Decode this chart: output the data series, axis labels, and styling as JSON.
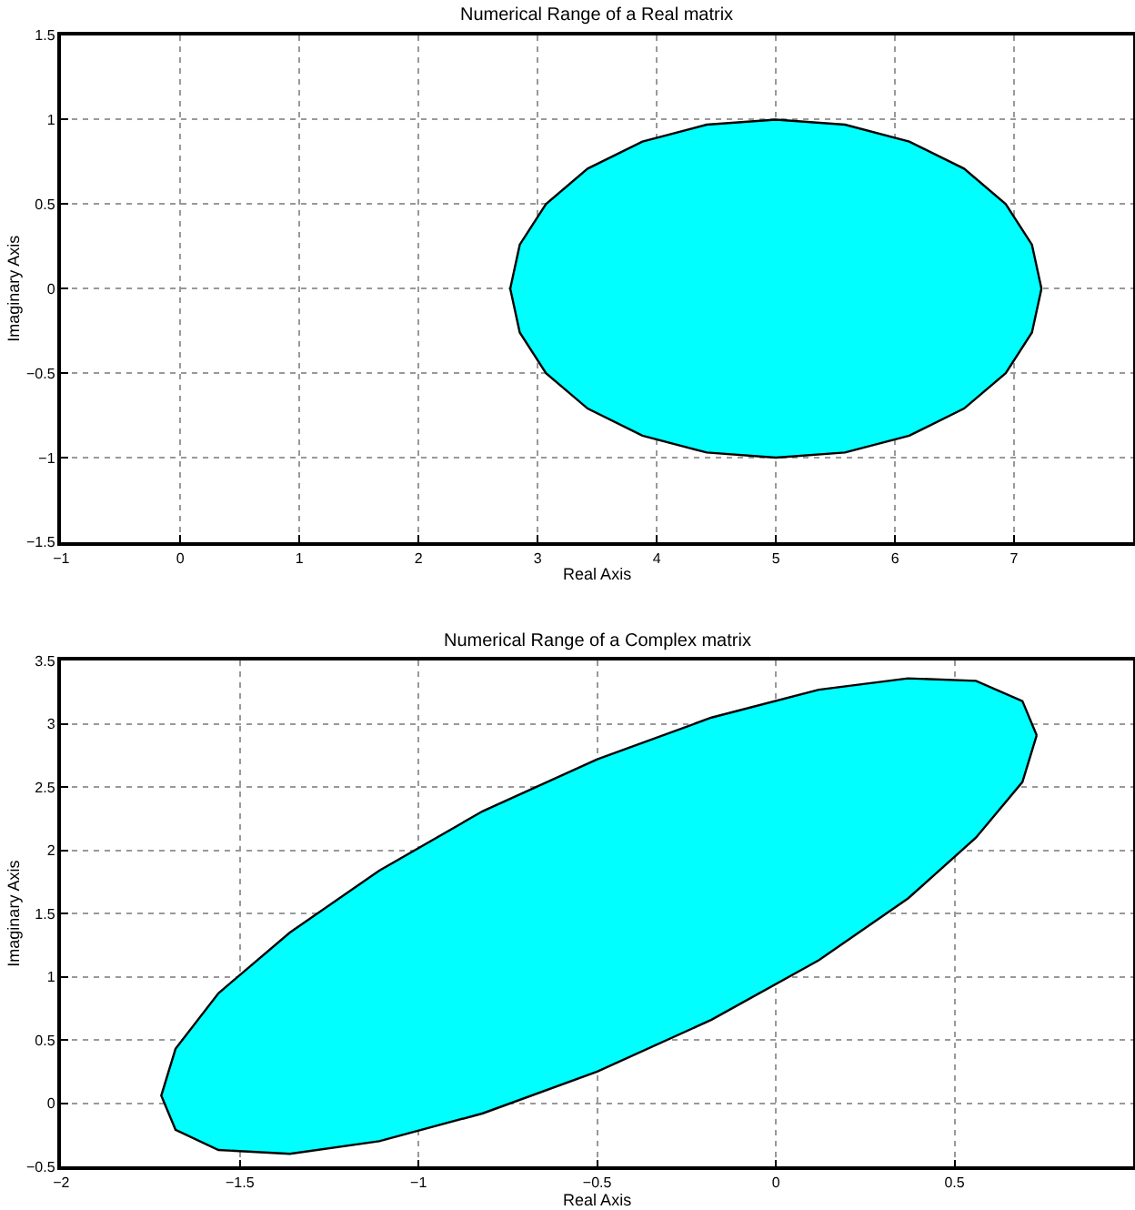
{
  "chart_data": [
    {
      "type": "area",
      "title": "Numerical Range of a Real matrix",
      "xlabel": "Real Axis",
      "ylabel": "Imaginary Axis",
      "series": [
        {
          "color": "#00ffff",
          "x": [
            7.23,
            7.15,
            6.93,
            6.58,
            6.12,
            5.58,
            5,
            4.42,
            3.88,
            3.42,
            3.07,
            2.85,
            2.77,
            2.85,
            3.07,
            3.42,
            3.88,
            4.42,
            5,
            5.58,
            6.12,
            6.58,
            6.93,
            7.15,
            7.23
          ],
          "values": [
            0,
            0.26,
            0.5,
            0.71,
            0.87,
            0.97,
            1,
            0.97,
            0.87,
            0.71,
            0.5,
            0.26,
            0,
            -0.26,
            -0.5,
            -0.71,
            -0.87,
            -0.97,
            -1,
            -0.97,
            -0.87,
            -0.71,
            -0.5,
            -0.26,
            0
          ]
        }
      ],
      "xlim": [
        -1,
        8
      ],
      "xticks": [
        -1,
        0,
        1,
        2,
        3,
        4,
        5,
        6,
        7
      ],
      "ylim": [
        -1.5,
        1.5
      ],
      "yticks": [
        -1.5,
        -1,
        -0.5,
        0,
        0.5,
        1,
        1.5
      ],
      "grid": true
    },
    {
      "type": "area",
      "title": "Numerical Range of a Complex matrix",
      "xlabel": "Real Axis",
      "ylabel": "Imaginary Axis",
      "series": [
        {
          "color": "#00ffff",
          "x": [
            0.73,
            0.69,
            0.56,
            0.37,
            0.12,
            -0.18,
            -0.5,
            -0.82,
            -1.11,
            -1.36,
            -1.56,
            -1.68,
            -1.72,
            -1.68,
            -1.56,
            -1.36,
            -1.11,
            -0.82,
            -0.5,
            -0.18,
            0.12,
            0.37,
            0.56,
            0.69,
            0.73
          ],
          "values": [
            2.91,
            3.18,
            3.34,
            3.36,
            3.27,
            3.05,
            2.72,
            2.31,
            1.84,
            1.35,
            0.87,
            0.43,
            0.06,
            -0.21,
            -0.37,
            -0.4,
            -0.3,
            -0.08,
            0.25,
            0.66,
            1.13,
            1.62,
            2.1,
            2.54,
            2.91
          ]
        }
      ],
      "xlim": [
        -2,
        1
      ],
      "xticks": [
        -2,
        -1.5,
        -1,
        -0.5,
        0,
        0.5
      ],
      "ylim": [
        -0.5,
        3.5
      ],
      "yticks": [
        -0.5,
        0,
        0.5,
        1,
        1.5,
        2,
        2.5,
        3,
        3.5
      ],
      "grid": true
    }
  ]
}
